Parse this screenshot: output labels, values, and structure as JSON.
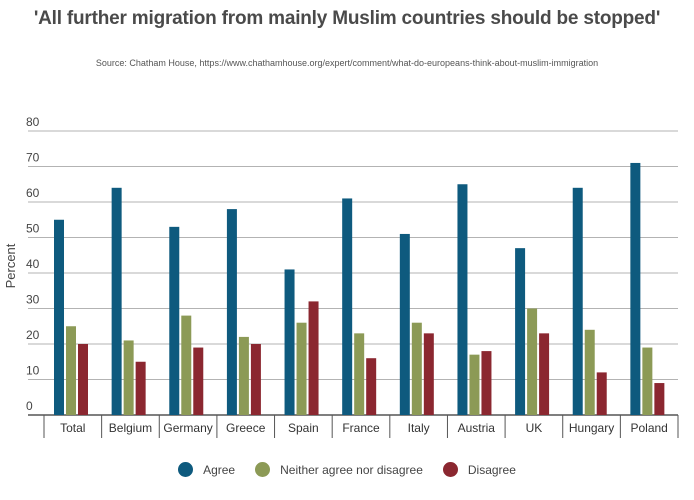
{
  "title": "'All further migration from mainly Muslim countries should be stopped'",
  "subtitle": "Source: Chatham House, https://www.chathamhouse.org/expert/comment/what-do-europeans-think-about-muslim-immigration",
  "chart_data": {
    "type": "bar",
    "ylabel": "Percent",
    "xlabel": "",
    "ylim": [
      0,
      80
    ],
    "yticks": [
      "0",
      "10",
      "20",
      "30",
      "40",
      "50",
      "60",
      "70",
      "80"
    ],
    "grid": true,
    "legend_position": "bottom",
    "categories": [
      "Total",
      "Belgium",
      "Germany",
      "Greece",
      "Spain",
      "France",
      "Italy",
      "Austria",
      "UK",
      "Hungary",
      "Poland"
    ],
    "series": [
      {
        "name": "Agree",
        "color": "#0e5a7e",
        "values": [
          55,
          64,
          53,
          58,
          41,
          61,
          51,
          65,
          47,
          64,
          71
        ]
      },
      {
        "name": "Neither agree nor disagree",
        "color": "#8c9a56",
        "values": [
          25,
          21,
          28,
          22,
          26,
          23,
          26,
          17,
          30,
          24,
          19
        ]
      },
      {
        "name": "Disagree",
        "color": "#8b2730",
        "values": [
          20,
          15,
          19,
          20,
          32,
          16,
          23,
          18,
          23,
          12,
          9
        ]
      }
    ]
  }
}
